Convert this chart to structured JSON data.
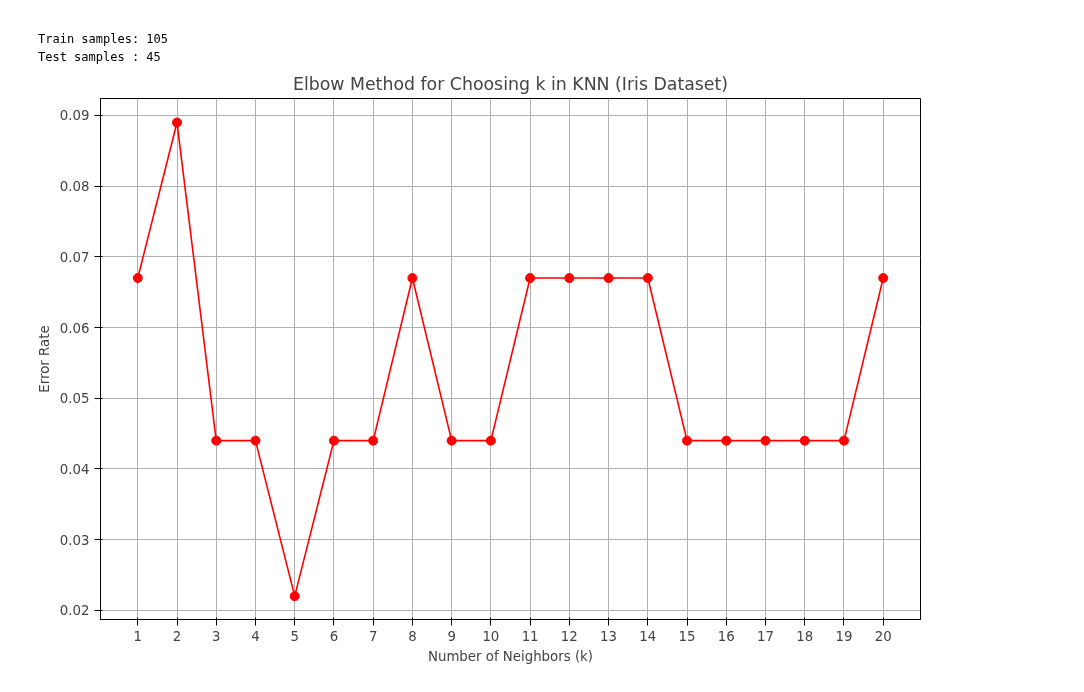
{
  "chart_data": {
    "type": "line",
    "title": "Elbow Method for Choosing k in KNN (Iris Dataset)",
    "xlabel": "Number of Neighbors (k)",
    "ylabel": "Error Rate",
    "annotations": [
      "Train samples: 105",
      "Test samples : 45"
    ],
    "x": [
      1,
      2,
      3,
      4,
      5,
      6,
      7,
      8,
      9,
      10,
      11,
      12,
      13,
      14,
      15,
      16,
      17,
      18,
      19,
      20
    ],
    "series": [
      {
        "color": "#ff0000",
        "values": [
          0.067,
          0.089,
          0.044,
          0.044,
          0.022,
          0.044,
          0.044,
          0.067,
          0.044,
          0.044,
          0.067,
          0.067,
          0.067,
          0.067,
          0.044,
          0.044,
          0.044,
          0.044,
          0.044,
          0.067
        ]
      }
    ],
    "xlim": [
      0.05,
      20.95
    ],
    "ylim": [
      0.0187,
      0.0924
    ],
    "xticks": [
      1,
      2,
      3,
      4,
      5,
      6,
      7,
      8,
      9,
      10,
      11,
      12,
      13,
      14,
      15,
      16,
      17,
      18,
      19,
      20
    ],
    "yticks": [
      {
        "value": 0.02,
        "label": "0.02"
      },
      {
        "value": 0.03,
        "label": "0.03"
      },
      {
        "value": 0.04,
        "label": "0.04"
      },
      {
        "value": 0.05,
        "label": "0.05"
      },
      {
        "value": 0.06,
        "label": "0.06"
      },
      {
        "value": 0.07,
        "label": "0.07"
      },
      {
        "value": 0.08,
        "label": "0.08"
      },
      {
        "value": 0.09,
        "label": "0.09"
      }
    ],
    "grid": true,
    "marker": "circle",
    "line_style": "solid"
  }
}
